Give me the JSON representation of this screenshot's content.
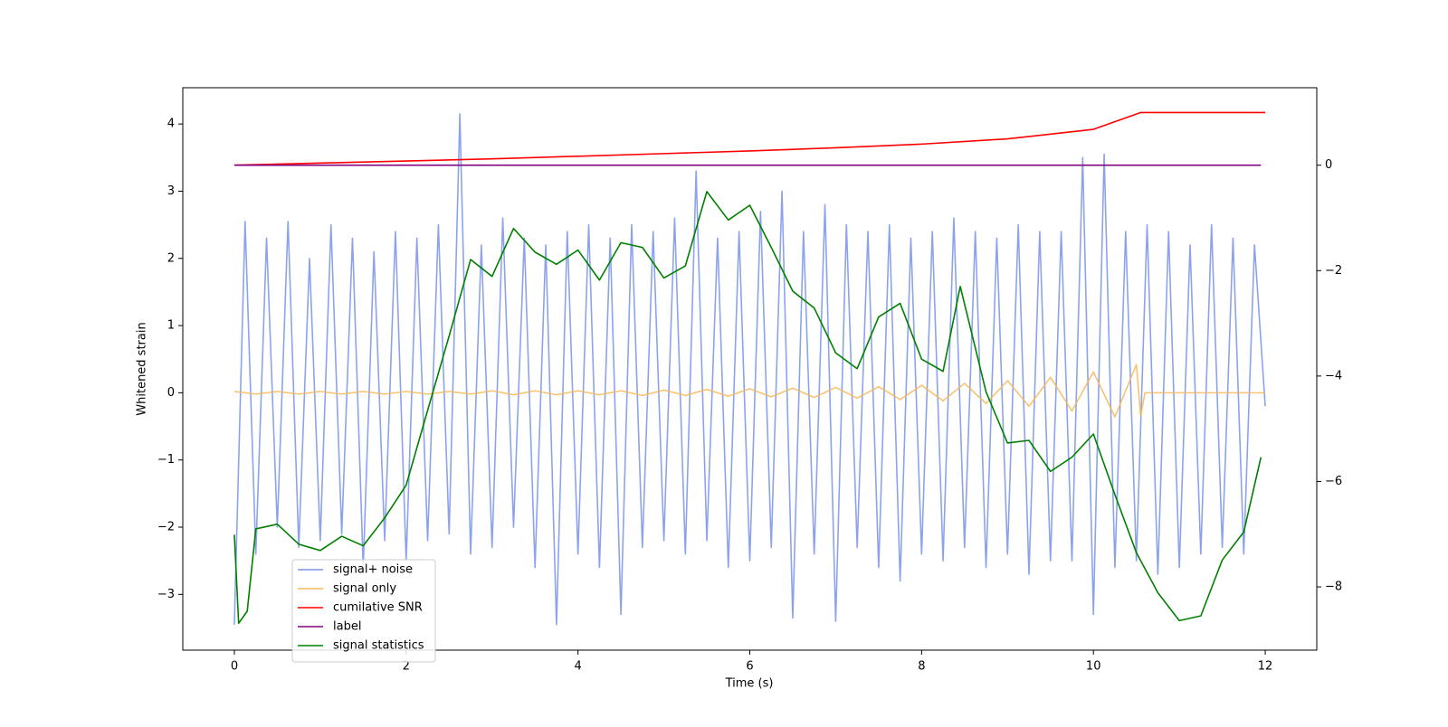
{
  "chart_data": {
    "type": "line",
    "xlabel": "Time (s)",
    "ylabel": "Whitened strain",
    "xlim": [
      -0.6,
      12.6
    ],
    "ylim": [
      -3.83,
      4.54
    ],
    "y2lim": [
      -9.2,
      1.47
    ],
    "xticks": [
      0,
      2,
      4,
      6,
      8,
      10,
      12
    ],
    "yticks": [
      {
        "value": -3,
        "label": "−3"
      },
      {
        "value": -2,
        "label": "−2"
      },
      {
        "value": -1,
        "label": "−1"
      },
      0,
      1,
      2,
      3,
      4
    ],
    "y2ticks": [
      {
        "value": -8,
        "label": "−8"
      },
      {
        "value": -6,
        "label": "−6"
      },
      {
        "value": -4,
        "label": "−4"
      },
      {
        "value": -2,
        "label": "−2"
      },
      0
    ],
    "legend": "lower left",
    "series": [
      {
        "name": "signal+ noise",
        "color": "#7893e8",
        "x": [
          0,
          0.125,
          0.25,
          0.375,
          0.5,
          0.625,
          0.75,
          0.875,
          1,
          1.125,
          1.25,
          1.375,
          1.5,
          1.625,
          1.75,
          1.875,
          2,
          2.125,
          2.25,
          2.375,
          2.5,
          2.625,
          2.75,
          2.875,
          3,
          3.125,
          3.25,
          3.375,
          3.5,
          3.625,
          3.75,
          3.875,
          4,
          4.125,
          4.25,
          4.375,
          4.5,
          4.625,
          4.75,
          4.875,
          5,
          5.125,
          5.25,
          5.375,
          5.5,
          5.625,
          5.75,
          5.875,
          6,
          6.125,
          6.25,
          6.375,
          6.5,
          6.625,
          6.75,
          6.875,
          7,
          7.125,
          7.25,
          7.375,
          7.5,
          7.625,
          7.75,
          7.875,
          8,
          8.125,
          8.25,
          8.375,
          8.5,
          8.625,
          8.75,
          8.875,
          9,
          9.125,
          9.25,
          9.375,
          9.5,
          9.625,
          9.75,
          9.875,
          10,
          10.125,
          10.25,
          10.375,
          10.5,
          10.625,
          10.75,
          10.875,
          11,
          11.125,
          11.25,
          11.375,
          11.5,
          11.625,
          11.75,
          11.875,
          12
        ],
        "values": [
          -3.45,
          2.55,
          -2.4,
          2.3,
          -2.0,
          2.55,
          -2.3,
          2.0,
          -2.2,
          2.5,
          -2.1,
          2.3,
          -2.6,
          2.1,
          -2.2,
          2.4,
          -2.5,
          2.3,
          -2.2,
          2.5,
          -2.1,
          4.15,
          -2.4,
          2.2,
          -2.3,
          2.6,
          -2.0,
          2.3,
          -2.6,
          2.2,
          -3.45,
          2.4,
          -2.4,
          2.5,
          -2.6,
          2.3,
          -3.3,
          2.5,
          -2.3,
          2.4,
          -2.2,
          2.6,
          -2.4,
          3.3,
          -2.2,
          2.3,
          -2.6,
          2.4,
          -2.5,
          2.7,
          -2.3,
          3.0,
          -3.35,
          2.4,
          -2.4,
          2.8,
          -3.4,
          2.5,
          -2.3,
          2.4,
          -2.6,
          2.5,
          -2.8,
          2.3,
          -2.4,
          2.4,
          -2.5,
          2.6,
          -2.3,
          2.4,
          -2.6,
          2.3,
          -2.4,
          2.5,
          -2.7,
          2.4,
          -2.5,
          2.4,
          -2.5,
          3.5,
          -3.3,
          3.55,
          -2.6,
          2.4,
          -2.5,
          2.5,
          -2.7,
          2.4,
          -2.6,
          2.2,
          -2.4,
          2.5,
          -2.3,
          2.3,
          -2.4,
          2.2,
          -0.2
        ]
      },
      {
        "name": "signal only",
        "color": "#f5b85a",
        "x": [
          0,
          0.25,
          0.5,
          0.75,
          1,
          1.25,
          1.5,
          1.75,
          2,
          2.25,
          2.5,
          2.75,
          3,
          3.25,
          3.5,
          3.75,
          4,
          4.25,
          4.5,
          4.75,
          5,
          5.25,
          5.5,
          5.75,
          6,
          6.25,
          6.5,
          6.75,
          7,
          7.25,
          7.5,
          7.75,
          8,
          8.25,
          8.5,
          8.75,
          9,
          9.25,
          9.5,
          9.75,
          10,
          10.25,
          10.5,
          10.55,
          10.6,
          12
        ],
        "values": [
          0.02,
          -0.02,
          0.02,
          -0.02,
          0.02,
          -0.02,
          0.02,
          -0.02,
          0.02,
          -0.02,
          0.02,
          -0.02,
          0.03,
          -0.03,
          0.03,
          -0.03,
          0.03,
          -0.03,
          0.03,
          -0.04,
          0.04,
          -0.04,
          0.05,
          -0.05,
          0.06,
          -0.06,
          0.07,
          -0.07,
          0.08,
          -0.08,
          0.09,
          -0.1,
          0.11,
          -0.12,
          0.14,
          -0.16,
          0.18,
          -0.2,
          0.23,
          -0.27,
          0.31,
          -0.36,
          0.42,
          -0.35,
          0,
          0
        ]
      },
      {
        "name": "cumilative SNR",
        "color": "#ff0000",
        "axis": "y2",
        "x": [
          0,
          1,
          2,
          3,
          4,
          5,
          6,
          7,
          8,
          9,
          10,
          10.5,
          10.55,
          12
        ],
        "values": [
          0,
          0.04,
          0.08,
          0.12,
          0.17,
          0.22,
          0.27,
          0.33,
          0.4,
          0.5,
          0.68,
          0.97,
          1,
          1
        ]
      },
      {
        "name": "label",
        "color": "#800080",
        "axis": "y2",
        "x": [
          0,
          11.95
        ],
        "values": [
          0,
          0
        ]
      },
      {
        "name": "signal statistics",
        "color": "#008000",
        "axis": "y2",
        "x": [
          0,
          0.05,
          0.15,
          0.25,
          0.5,
          0.75,
          1,
          1.25,
          1.5,
          1.75,
          2,
          2.25,
          2.5,
          2.75,
          3,
          3.25,
          3.5,
          3.75,
          4,
          4.25,
          4.5,
          4.75,
          5,
          5.25,
          5.5,
          5.75,
          6,
          6.25,
          6.5,
          6.75,
          7,
          7.25,
          7.5,
          7.75,
          8,
          8.25,
          8.45,
          8.75,
          9,
          9.25,
          9.5,
          9.75,
          10,
          10.25,
          10.5,
          10.75,
          11,
          11.25,
          11.5,
          11.75,
          11.95
        ],
        "values": [
          -7.01,
          -8.69,
          -8.46,
          -6.9,
          -6.81,
          -7.19,
          -7.31,
          -7.04,
          -7.22,
          -6.69,
          -6.07,
          -4.65,
          -3.24,
          -1.79,
          -2.11,
          -1.2,
          -1.65,
          -1.88,
          -1.61,
          -2.18,
          -1.47,
          -1.56,
          -2.14,
          -1.91,
          -0.5,
          -1.04,
          -0.76,
          -1.56,
          -2.39,
          -2.71,
          -3.56,
          -3.86,
          -2.88,
          -2.62,
          -3.68,
          -3.91,
          -2.3,
          -4.3,
          -5.27,
          -5.22,
          -5.81,
          -5.54,
          -5.1,
          -6.25,
          -7.35,
          -8.11,
          -8.64,
          -8.55,
          -7.49,
          -6.96,
          -5.54
        ]
      }
    ]
  }
}
